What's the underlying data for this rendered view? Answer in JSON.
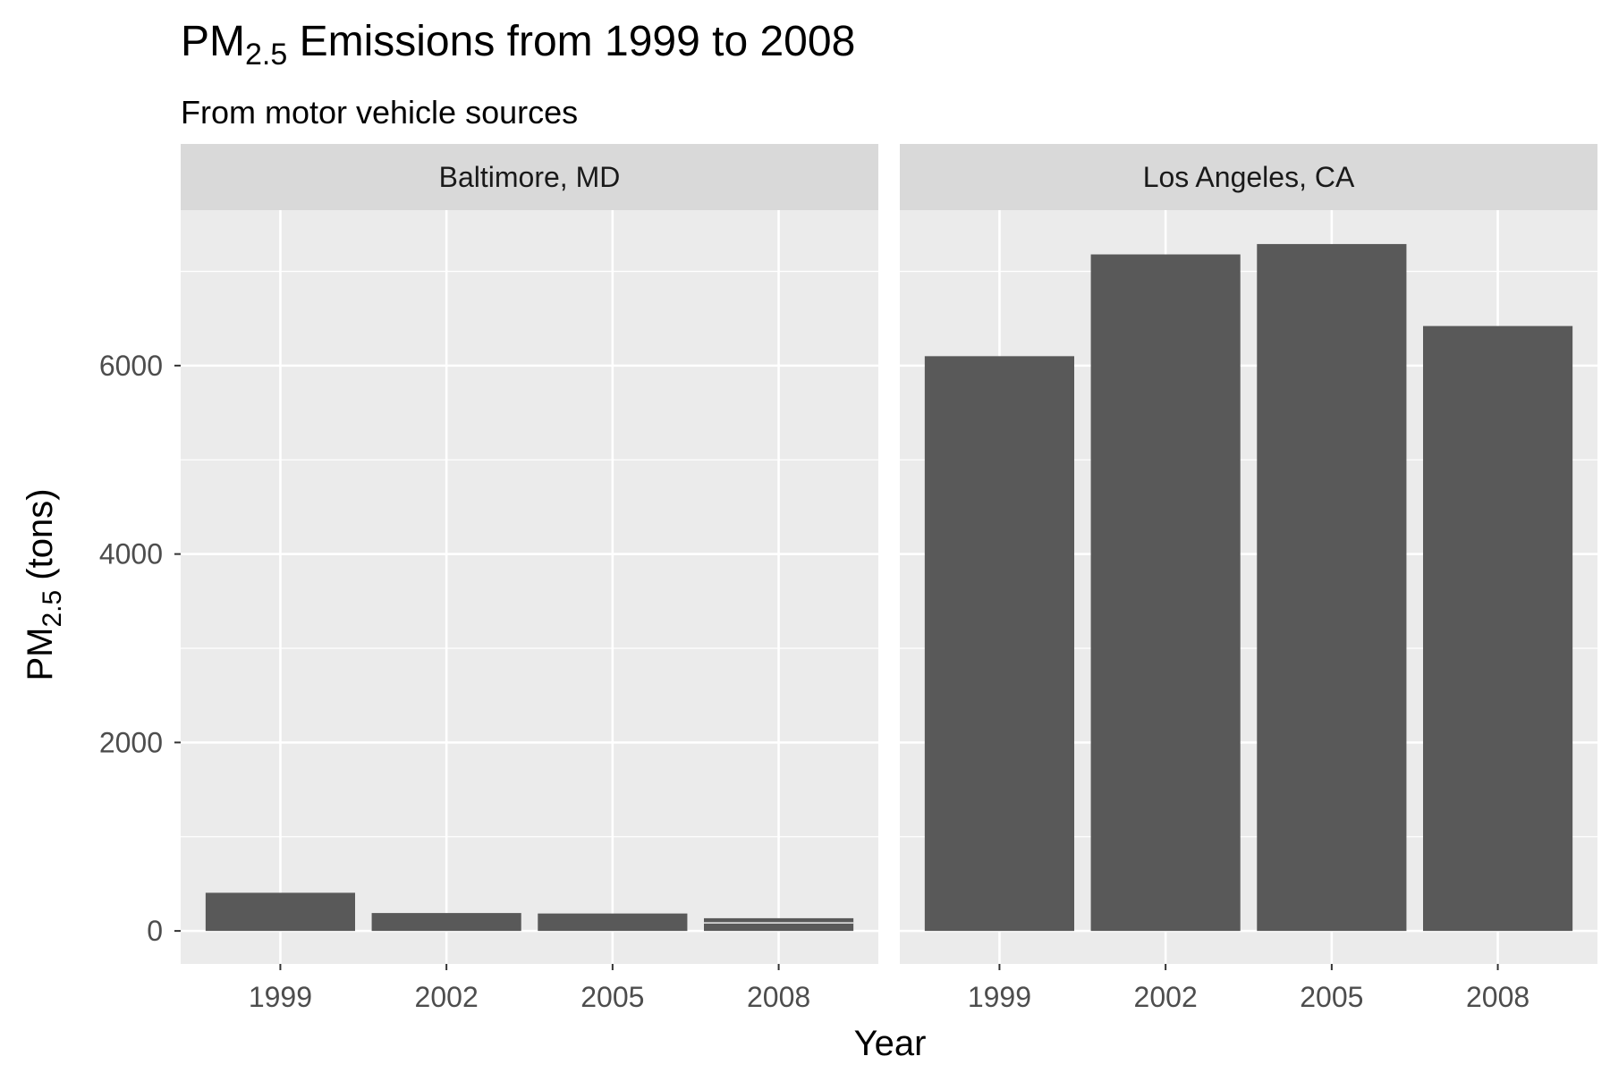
{
  "chart_data": {
    "type": "bar",
    "title": {
      "prefix": "PM",
      "subscript": "2.5",
      "suffix": " Emissions from 1999 to 2008"
    },
    "subtitle": "From motor vehicle sources",
    "xlabel": "Year",
    "ylabel": {
      "prefix": "PM",
      "subscript": "2.5",
      "suffix": " (tons)"
    },
    "categories": [
      "1999",
      "2002",
      "2005",
      "2008"
    ],
    "yticks": [
      0,
      2000,
      4000,
      6000
    ],
    "ylim": [
      -350,
      7650
    ],
    "grid": true,
    "facets": [
      {
        "name": "Baltimore, MD",
        "values": [
          405,
          190,
          185,
          135
        ],
        "segment_lines": [
          null,
          null,
          null,
          85
        ]
      },
      {
        "name": "Los Angeles, CA",
        "values": [
          6100,
          7180,
          7290,
          6420
        ],
        "segment_lines": [
          null,
          null,
          null,
          null
        ]
      }
    ],
    "colors": {
      "bar": "#595959",
      "panel_background": "#ebebeb",
      "strip_background": "#d9d9d9",
      "grid": "#ffffff",
      "tick_text": "#4d4d4d",
      "tick_mark": "#333333"
    }
  }
}
